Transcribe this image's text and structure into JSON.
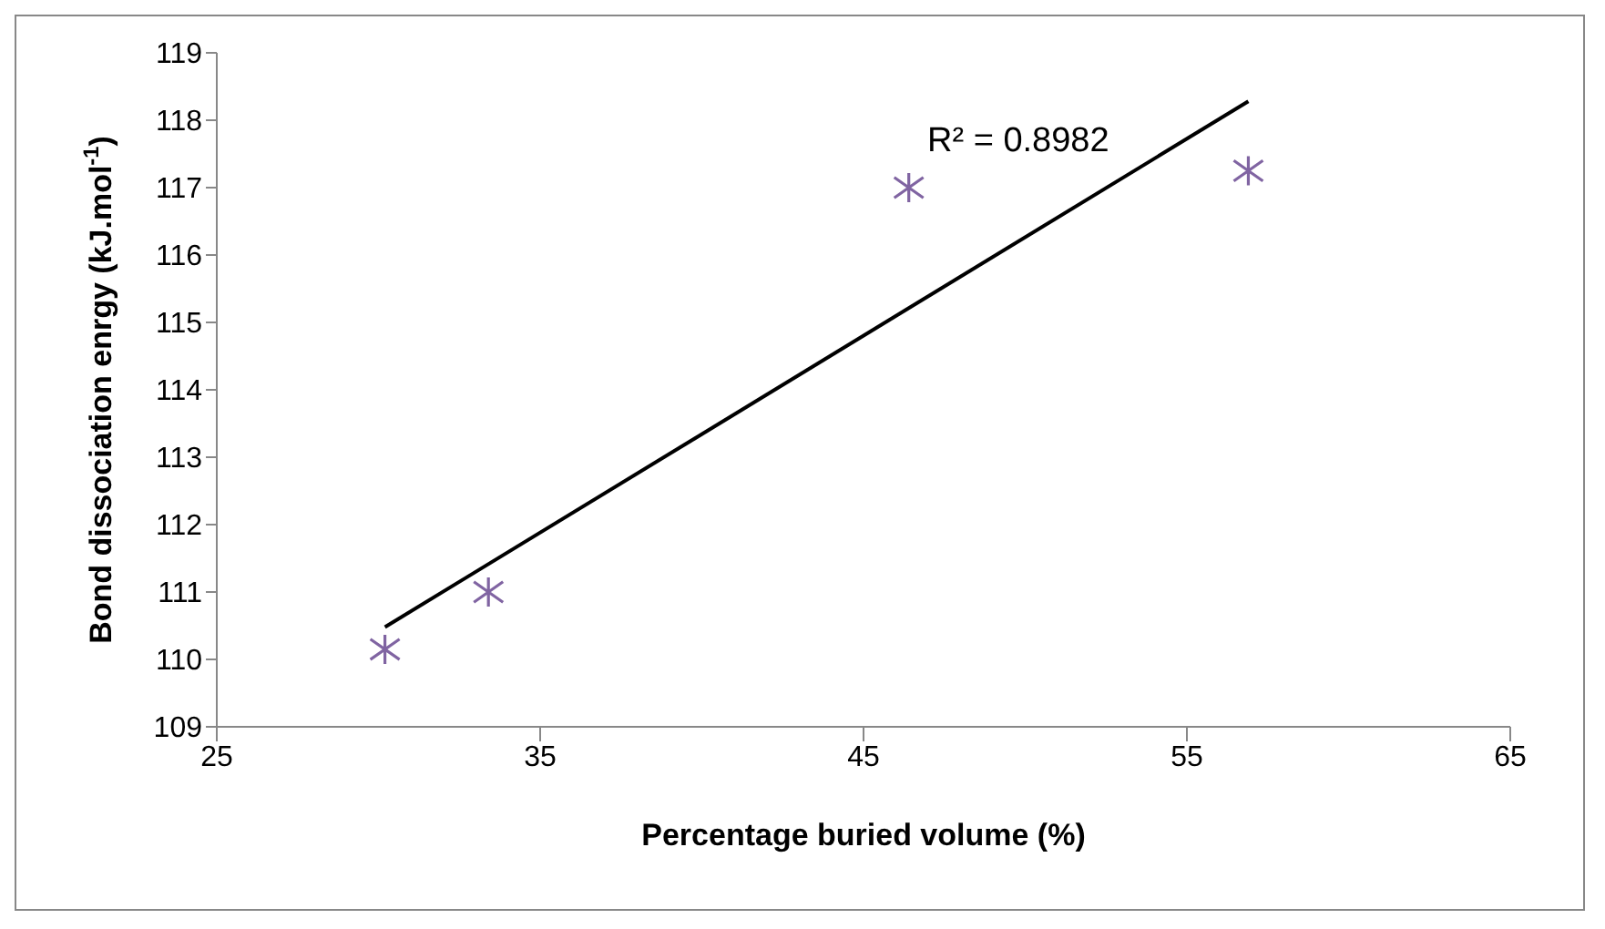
{
  "chart_data": {
    "type": "scatter",
    "xlabel": "Percentage buried volume (%)",
    "ylabel": "Bond dissociation enrgy (kJ.mol$^{-1}$)",
    "xlim": [
      25,
      65
    ],
    "xticks": [
      25,
      35,
      45,
      55,
      65
    ],
    "ylim": [
      109,
      119
    ],
    "yticks": [
      109,
      110,
      111,
      112,
      113,
      114,
      115,
      116,
      117,
      118,
      119
    ],
    "grid": false,
    "marker": "cross",
    "series": [
      {
        "color": "#8064a2",
        "x": [
          30.2,
          33.4,
          46.4,
          56.9
        ],
        "values": [
          110.15,
          111,
          117,
          117.25
        ]
      },
      {
        "type": "line",
        "color": "#000000",
        "marker": "none",
        "line_style": "solid",
        "x": [
          30.2,
          56.9
        ],
        "values": [
          110.48,
          118.28
        ]
      }
    ],
    "annotations": [
      "R² = 0.8982"
    ]
  }
}
